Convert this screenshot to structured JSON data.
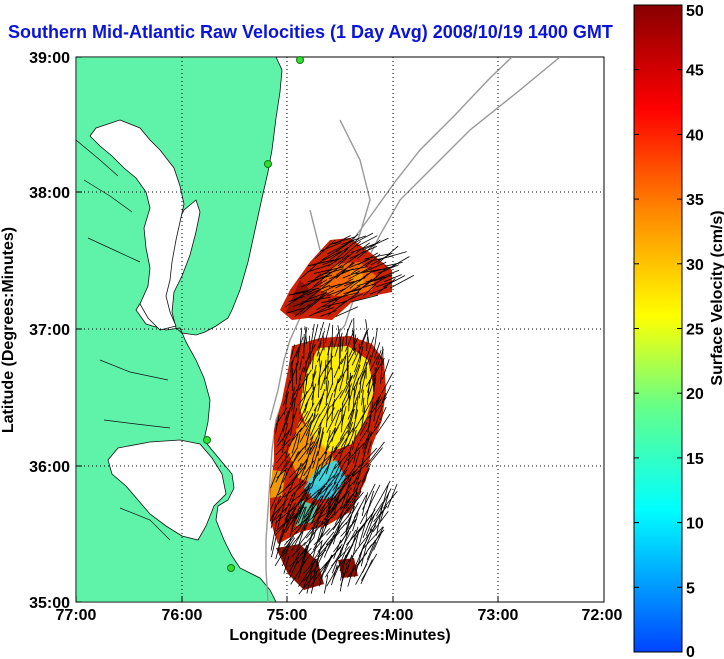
{
  "title": "Southern Mid-Atlantic Raw Velocities (1 Day Avg) 2008/10/19 1400 GMT",
  "map": {
    "x_label": "Longitude (Degrees:Minutes)",
    "y_label": "Latitude (Degrees:Minutes)",
    "x_ticks": [
      "77:00",
      "76:00",
      "75:00",
      "74:00",
      "73:00",
      "72:00"
    ],
    "y_ticks": [
      "39:00",
      "38:00",
      "37:00",
      "36:00",
      "35:00"
    ],
    "grid": "dotted",
    "land_color": "#5ef3a8",
    "coast_line_color": "#111111",
    "bathymetry_color": "#999999",
    "station_color": "#33dd33"
  },
  "colorbar": {
    "label": "Surface Velocity (cm/s)",
    "ticks": [
      "50",
      "45",
      "40",
      "35",
      "30",
      "25",
      "20",
      "15",
      "10",
      "5",
      "0"
    ],
    "range": [
      0,
      50
    ],
    "colormap": [
      "#0044ff",
      "#00ffff",
      "#66ff88",
      "#ffff00",
      "#ff8800",
      "#ff0000",
      "#880000"
    ]
  }
}
